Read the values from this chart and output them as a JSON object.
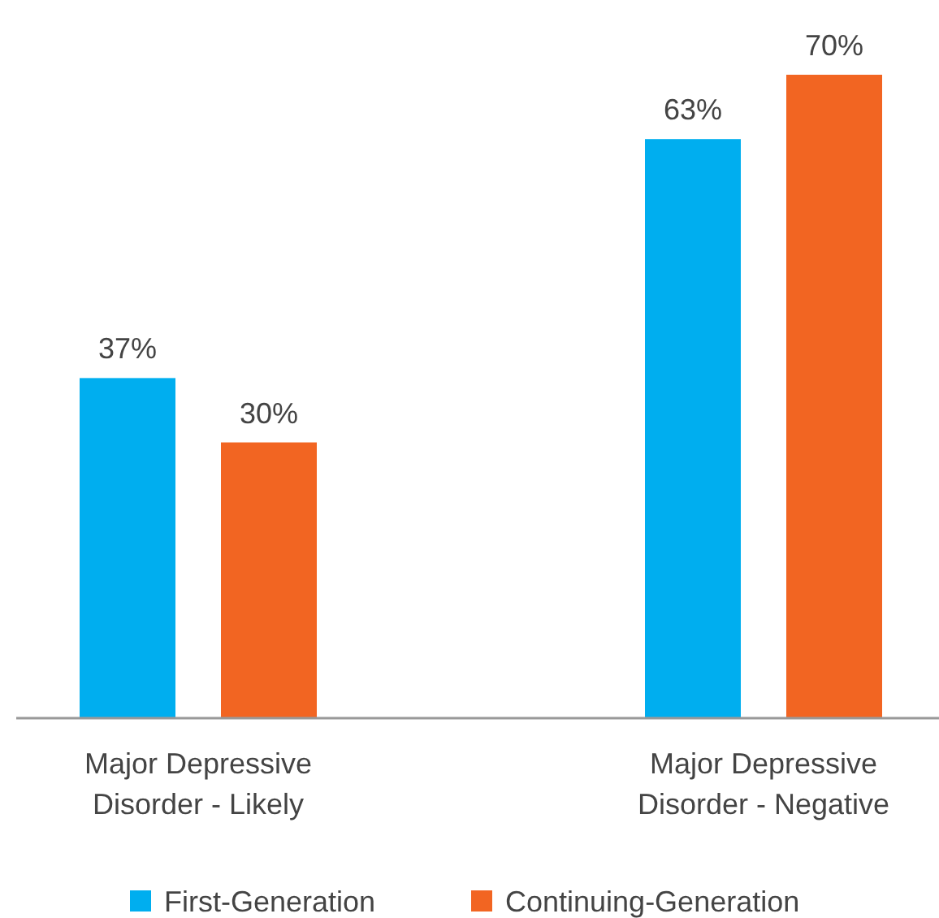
{
  "chart_data": {
    "type": "bar",
    "categories": [
      "Major Depressive Disorder - Likely",
      "Major Depressive Disorder - Negative"
    ],
    "series": [
      {
        "name": "First-Generation",
        "color": "#00aeef",
        "values": [
          37,
          63
        ],
        "value_labels": [
          "37%",
          "63%"
        ]
      },
      {
        "name": "Continuing-Generation",
        "color": "#f26522",
        "values": [
          30,
          70
        ],
        "value_labels": [
          "30%",
          "70%"
        ]
      }
    ],
    "legend": "bottom"
  }
}
